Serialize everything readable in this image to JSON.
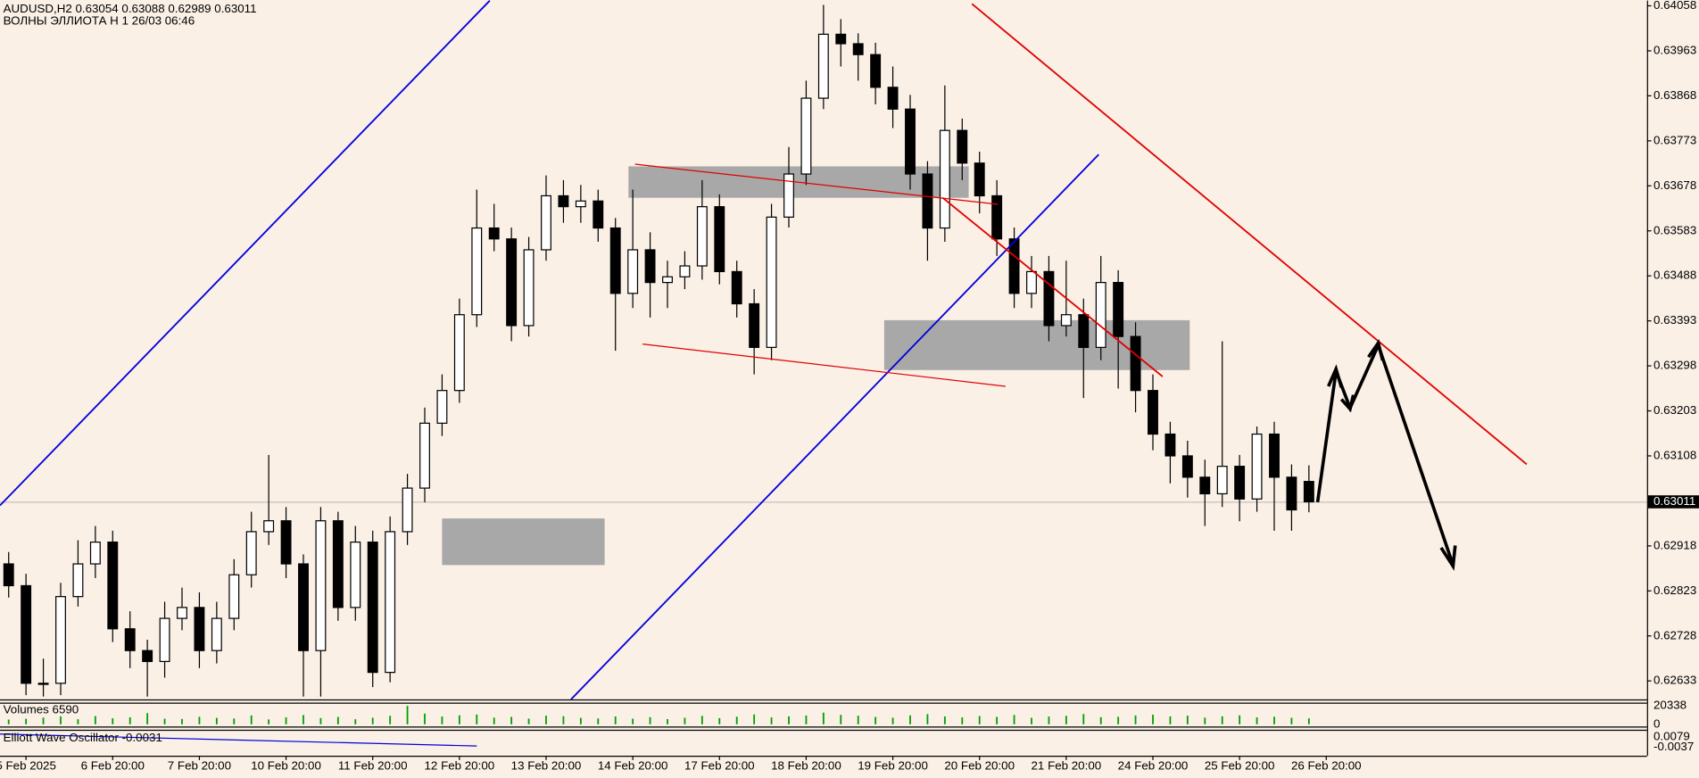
{
  "chart_data": {
    "type": "candlestick",
    "symbol_info": "AUDUSD,H2  0.63054 0.63088 0.62989 0.63011",
    "subtitle": "ВОЛНЫ ЭЛЛИОТА Н 1 26/03 06:46",
    "xlim": [
      -0.5,
      94.5
    ],
    "xticks": [
      {
        "value": 1,
        "label": "5 Feb 2025"
      },
      {
        "value": 6,
        "label": "6 Feb 20:00"
      },
      {
        "value": 11,
        "label": "7 Feb 20:00"
      },
      {
        "value": 16,
        "label": "10 Feb 20:00"
      },
      {
        "value": 21,
        "label": "11 Feb 20:00"
      },
      {
        "value": 26,
        "label": "12 Feb 20:00"
      },
      {
        "value": 31,
        "label": "13 Feb 20:00"
      },
      {
        "value": 36,
        "label": "14 Feb 20:00"
      },
      {
        "value": 41,
        "label": "17 Feb 20:00"
      },
      {
        "value": 46,
        "label": "18 Feb 20:00"
      },
      {
        "value": 51,
        "label": "19 Feb 20:00"
      },
      {
        "value": 56,
        "label": "20 Feb 20:00"
      },
      {
        "value": 61,
        "label": "21 Feb 20:00"
      },
      {
        "value": 66,
        "label": "24 Feb 20:00"
      },
      {
        "value": 71,
        "label": "25 Feb 20:00"
      },
      {
        "value": 76,
        "label": "26 Feb 20:00"
      }
    ],
    "ylim": [
      0.62594,
      0.64069
    ],
    "yticks": [
      0.64058,
      0.63963,
      0.63868,
      0.63773,
      0.63678,
      0.63583,
      0.63488,
      0.63393,
      0.63298,
      0.63203,
      0.63108,
      0.62918,
      0.62823,
      0.62728,
      0.62633
    ],
    "last_price": 0.63011,
    "up_color": "#ffffff",
    "down_color": "#000000",
    "open": [
      0.6288,
      0.62834,
      0.62628,
      0.62628,
      0.62811,
      0.6288,
      0.62926,
      0.62743,
      0.62697,
      0.62674,
      0.62765,
      0.62788,
      0.62697,
      0.62765,
      0.62857,
      0.62948,
      0.62971,
      0.6288,
      0.62697,
      0.62971,
      0.62788,
      0.62926,
      0.62651,
      0.62948,
      0.6304,
      0.63177,
      0.63246,
      0.63406,
      0.63589,
      0.63566,
      0.63383,
      0.63543,
      0.63657,
      0.63634,
      0.63646,
      0.63589,
      0.63451,
      0.63543,
      0.63474,
      0.63486,
      0.63509,
      0.63634,
      0.63497,
      0.63429,
      0.63337,
      0.63612,
      0.63703,
      0.63863,
      0.63998,
      0.63978,
      0.63955,
      0.63886,
      0.6384,
      0.63703,
      0.63589,
      0.63795,
      0.63726,
      0.63657,
      0.63566,
      0.63451,
      0.63497,
      0.63383,
      0.63406,
      0.63337,
      0.63474,
      0.6336,
      0.63246,
      0.63154,
      0.63108,
      0.63063,
      0.63028,
      0.63086,
      0.63017,
      0.63154,
      0.63063,
      0.63054
    ],
    "high": [
      0.62905,
      0.62859,
      0.6268,
      0.6284,
      0.6293,
      0.6296,
      0.6295,
      0.6278,
      0.6272,
      0.628,
      0.6283,
      0.6282,
      0.628,
      0.6289,
      0.6299,
      0.6311,
      0.63,
      0.629,
      0.63,
      0.6299,
      0.6296,
      0.6295,
      0.6298,
      0.6307,
      0.6321,
      0.6328,
      0.6344,
      0.6367,
      0.6364,
      0.6359,
      0.6357,
      0.637,
      0.6369,
      0.6368,
      0.6367,
      0.6361,
      0.6367,
      0.6358,
      0.6352,
      0.6354,
      0.6369,
      0.6366,
      0.6352,
      0.6346,
      0.6364,
      0.6376,
      0.639,
      0.6406,
      0.6403,
      0.64,
      0.6398,
      0.6393,
      0.6387,
      0.6373,
      0.6389,
      0.6382,
      0.6375,
      0.6369,
      0.6359,
      0.6353,
      0.6353,
      0.6352,
      0.6344,
      0.6353,
      0.635,
      0.6339,
      0.6328,
      0.6318,
      0.6314,
      0.631,
      0.6335,
      0.6311,
      0.6317,
      0.6318,
      0.6309,
      0.63088
    ],
    "low": [
      0.62809,
      0.62603,
      0.626,
      0.62603,
      0.6279,
      0.6285,
      0.62715,
      0.6266,
      0.626,
      0.6264,
      0.6274,
      0.6266,
      0.6267,
      0.6274,
      0.6283,
      0.6292,
      0.6285,
      0.626,
      0.626,
      0.6276,
      0.6276,
      0.6262,
      0.6263,
      0.6292,
      0.6301,
      0.6315,
      0.6322,
      0.6338,
      0.6354,
      0.6335,
      0.6336,
      0.6352,
      0.636,
      0.636,
      0.6356,
      0.6333,
      0.6342,
      0.634,
      0.6342,
      0.6346,
      0.6348,
      0.6347,
      0.634,
      0.6328,
      0.6331,
      0.6359,
      0.6368,
      0.6384,
      0.6393,
      0.639,
      0.6385,
      0.638,
      0.6367,
      0.6352,
      0.6356,
      0.6369,
      0.6362,
      0.6353,
      0.6342,
      0.6342,
      0.6335,
      0.6336,
      0.6323,
      0.6331,
      0.6325,
      0.632,
      0.6312,
      0.6305,
      0.6302,
      0.6296,
      0.63,
      0.6297,
      0.6299,
      0.6295,
      0.6295,
      0.62989
    ],
    "close": [
      0.62834,
      0.62628,
      0.62628,
      0.62811,
      0.6288,
      0.62926,
      0.62743,
      0.62697,
      0.62674,
      0.62765,
      0.62788,
      0.62697,
      0.62765,
      0.62857,
      0.62948,
      0.62971,
      0.6288,
      0.62697,
      0.62971,
      0.62788,
      0.62926,
      0.62651,
      0.62948,
      0.6304,
      0.63177,
      0.63246,
      0.63406,
      0.63589,
      0.63566,
      0.63383,
      0.63543,
      0.63657,
      0.63634,
      0.63646,
      0.63589,
      0.63451,
      0.63543,
      0.63474,
      0.63486,
      0.63509,
      0.63634,
      0.63497,
      0.63429,
      0.63337,
      0.63612,
      0.63703,
      0.63863,
      0.63998,
      0.63978,
      0.63955,
      0.63886,
      0.6384,
      0.63703,
      0.63589,
      0.63795,
      0.63726,
      0.63657,
      0.63566,
      0.63451,
      0.63497,
      0.63383,
      0.63406,
      0.63337,
      0.63474,
      0.6336,
      0.63246,
      0.63154,
      0.63108,
      0.63063,
      0.63028,
      0.63086,
      0.63017,
      0.63154,
      0.63063,
      0.62994,
      0.63011
    ],
    "volume_title": "Volumes 6590",
    "volume_color": "#00a000",
    "volume_lim": [
      0,
      20338
    ],
    "volume_ticks": [
      20338,
      0
    ],
    "volumes": [
      5200,
      6100,
      7400,
      8800,
      5600,
      9100,
      6700,
      7800,
      12400,
      6200,
      5900,
      8300,
      7100,
      6400,
      9800,
      5400,
      7700,
      10200,
      6900,
      8100,
      5600,
      7300,
      9400,
      20338,
      11800,
      8600,
      9900,
      10800,
      7400,
      8200,
      6300,
      9600,
      8900,
      7100,
      6500,
      8700,
      6200,
      7900,
      5800,
      7200,
      9300,
      6800,
      8400,
      10900,
      7600,
      8800,
      9700,
      12900,
      10400,
      9500,
      8100,
      7300,
      9900,
      11200,
      8700,
      7600,
      9100,
      8200,
      10300,
      7200,
      8600,
      9400,
      11400,
      7900,
      8300,
      9800,
      10600,
      8700,
      9500,
      7400,
      8800,
      9900,
      7600,
      8400,
      7200,
      6590
    ],
    "oscillator_title": "Elliott Wave Oscillator -0.0031",
    "oscillator_lim": [
      -0.013,
      0.016
    ],
    "oscillator_ticks": [
      0.0079,
      -0.0037
    ]
  }
}
